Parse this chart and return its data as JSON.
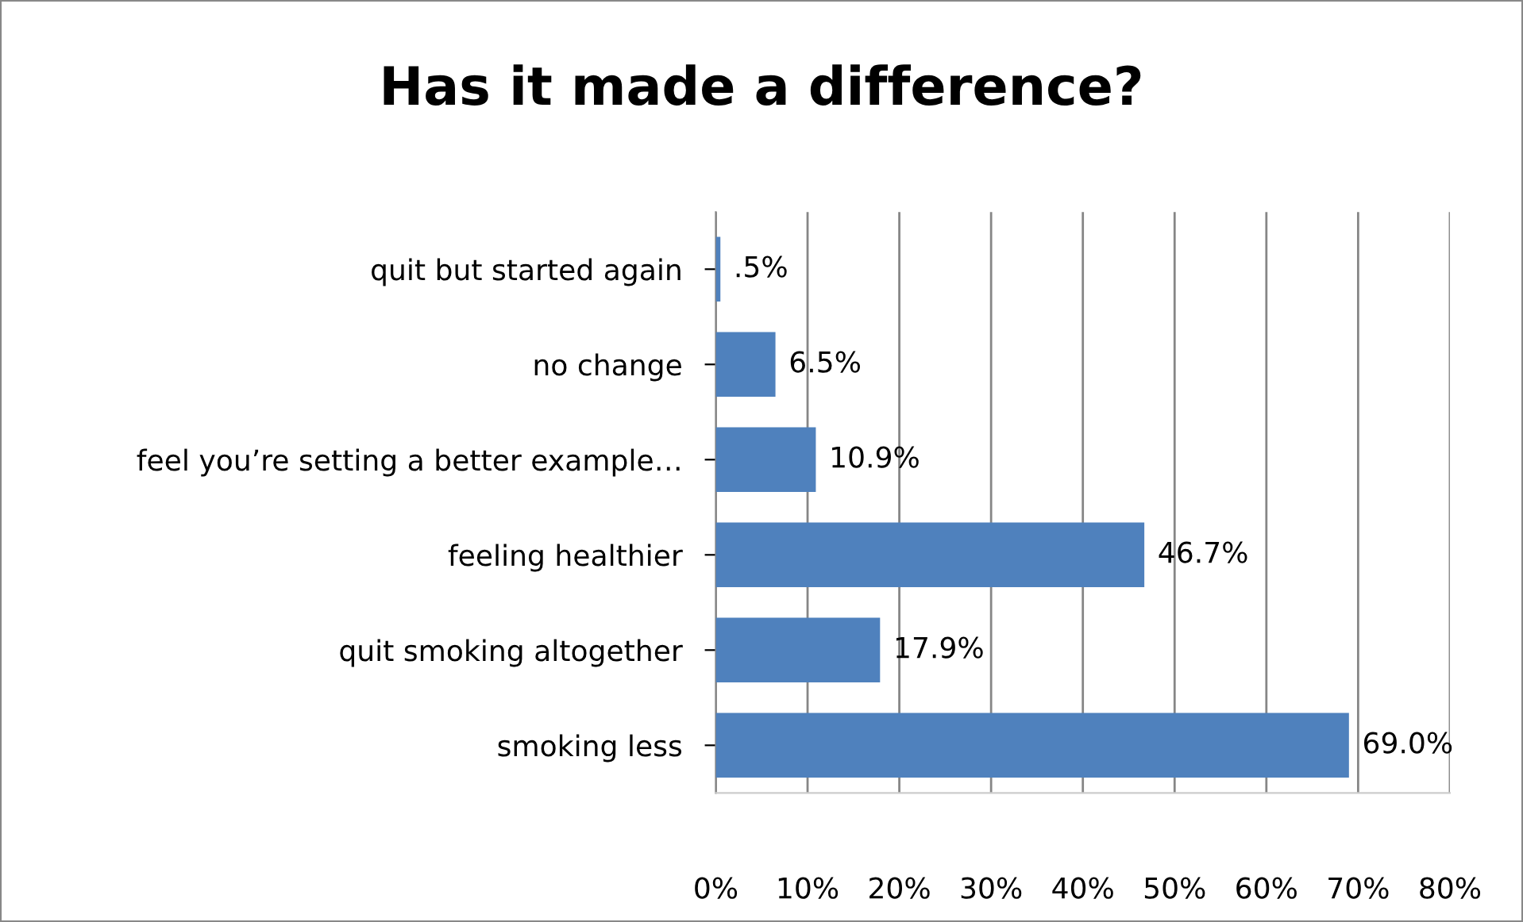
{
  "chart_data": {
    "type": "bar",
    "orientation": "horizontal",
    "title": "Has it made a difference?",
    "categories": [
      "quit but started again",
      "no change",
      "feel you’re setting a better example…",
      "feeling healthier",
      "quit smoking altogether",
      "smoking less"
    ],
    "values": [
      0.5,
      6.5,
      10.9,
      46.7,
      17.9,
      69.0
    ],
    "value_labels": [
      ".5%",
      "6.5%",
      "10.9%",
      "46.7%",
      "17.9%",
      "69.0%"
    ],
    "color": "#4f81bd",
    "xlim": [
      0,
      80
    ],
    "xticks": [
      {
        "value": 0,
        "label": "0%"
      },
      {
        "value": 10,
        "label": "10%"
      },
      {
        "value": 20,
        "label": "20%"
      },
      {
        "value": 30,
        "label": "30%"
      },
      {
        "value": 40,
        "label": "40%"
      },
      {
        "value": 50,
        "label": "50%"
      },
      {
        "value": 60,
        "label": "60%"
      },
      {
        "value": 70,
        "label": "70%"
      },
      {
        "value": 80,
        "label": "80%"
      }
    ],
    "grid": "x"
  }
}
